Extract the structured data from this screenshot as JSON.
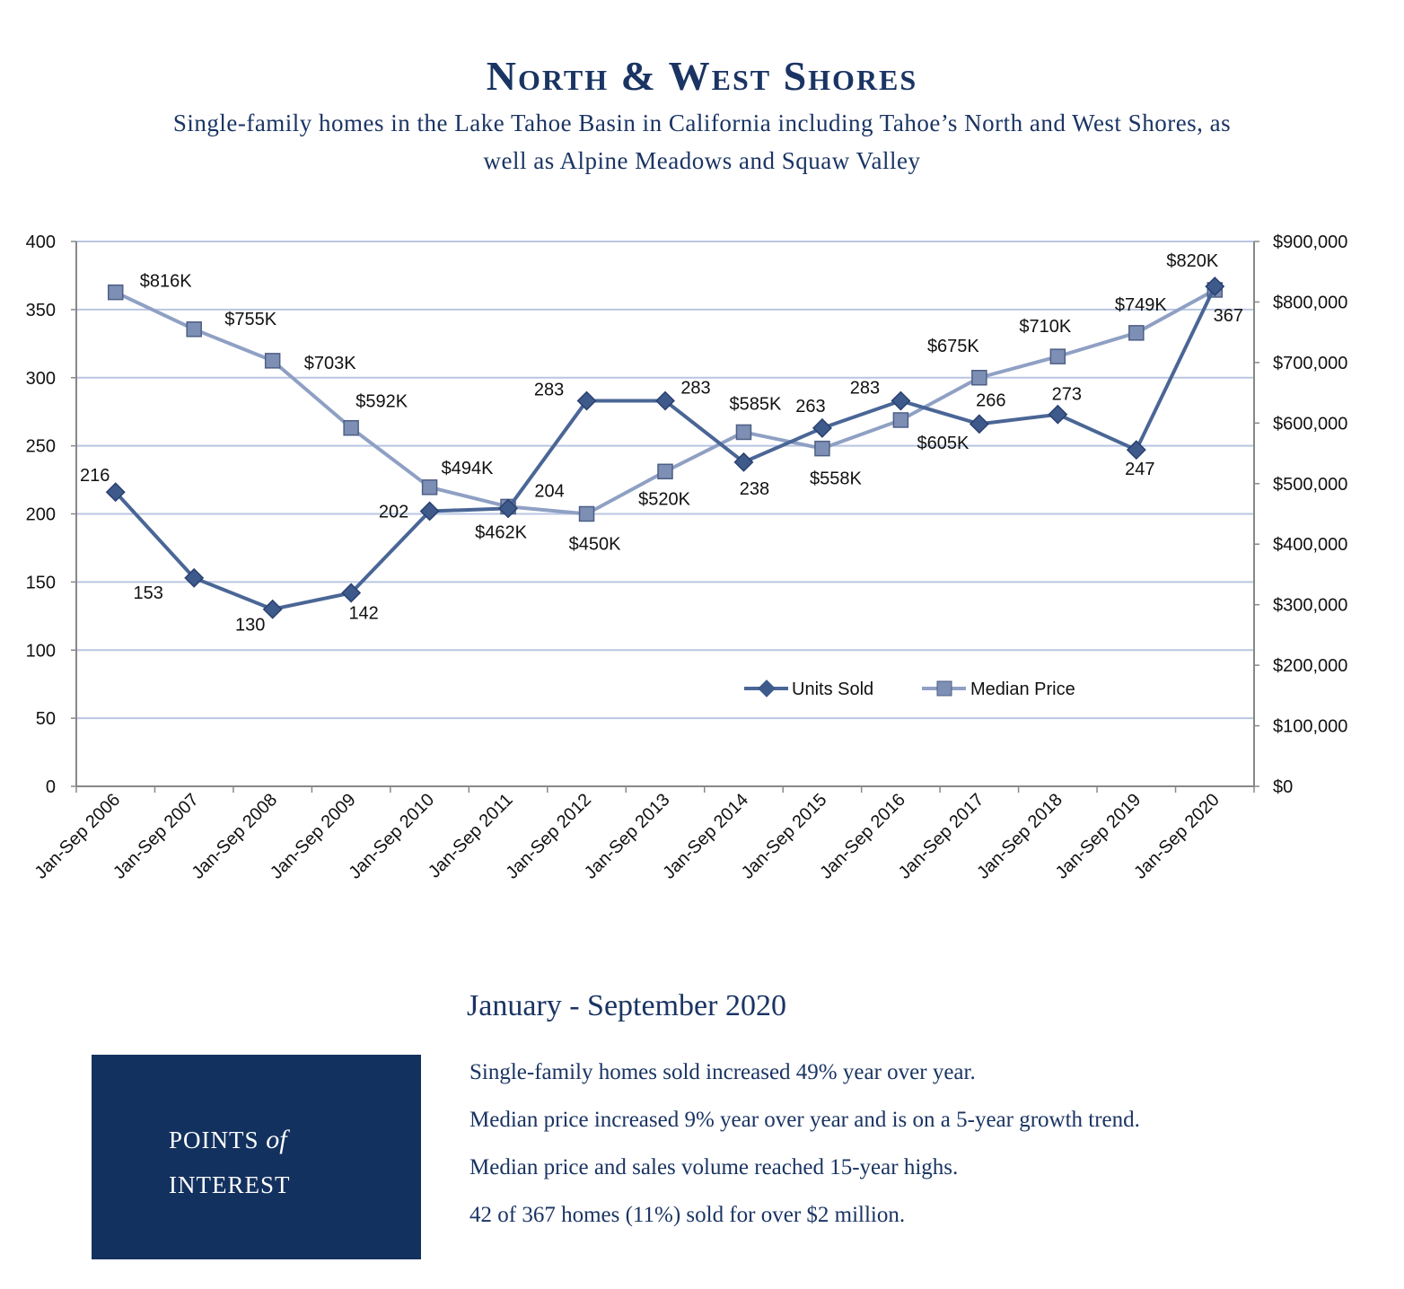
{
  "header": {
    "title": "North & West Shores",
    "subtitle": "Single-family homes in the Lake Tahoe Basin in California including Tahoe’s North and West Shores, as well as Alpine Meadows and Squaw Valley"
  },
  "chart_data": {
    "type": "line",
    "categories": [
      "Jan-Sep 2006",
      "Jan-Sep 2007",
      "Jan-Sep 2008",
      "Jan-Sep 2009",
      "Jan-Sep 2010",
      "Jan-Sep 2011",
      "Jan-Sep 2012",
      "Jan-Sep 2013",
      "Jan-Sep 2014",
      "Jan-Sep 2015",
      "Jan-Sep 2016",
      "Jan-Sep 2017",
      "Jan-Sep 2018",
      "Jan-Sep 2019",
      "Jan-Sep 2020"
    ],
    "series": [
      {
        "name": "Units Sold",
        "axis": "left",
        "color": "#4a6696",
        "marker": "diamond",
        "values": [
          216,
          153,
          130,
          142,
          202,
          204,
          283,
          283,
          238,
          263,
          283,
          266,
          273,
          247,
          367
        ],
        "labels": [
          "216",
          "153",
          "130",
          "142",
          "202",
          "204",
          "283",
          "283",
          "238",
          "263",
          "283",
          "266",
          "273",
          "247",
          "367"
        ]
      },
      {
        "name": "Median Price",
        "axis": "right",
        "color": "#8fa0c4",
        "marker": "square",
        "values": [
          816000,
          755000,
          703000,
          592000,
          494000,
          462000,
          450000,
          520000,
          585000,
          558000,
          605000,
          675000,
          710000,
          749000,
          820000
        ],
        "labels": [
          "$816K",
          "$755K",
          "$703K",
          "$592K",
          "$494K",
          "$462K",
          "$450K",
          "$520K",
          "$585K",
          "$558K",
          "$605K",
          "$675K",
          "$710K",
          "$749K",
          "$820K"
        ]
      }
    ],
    "y_left": {
      "range": [
        0,
        400
      ],
      "ticks": [
        "0",
        "50",
        "100",
        "150",
        "200",
        "250",
        "300",
        "350",
        "400"
      ]
    },
    "y_right": {
      "range": [
        0,
        900000
      ],
      "ticks": [
        "$0",
        "$100,000",
        "$200,000",
        "$300,000",
        "$400,000",
        "$500,000",
        "$600,000",
        "$700,000",
        "$800,000",
        "$900,000"
      ]
    },
    "grid": true,
    "legend": "inside-bottom-right"
  },
  "summary": {
    "period": "January - September 2020",
    "box_line1": "POINTS",
    "box_of": "of",
    "box_line2": "INTEREST",
    "points": [
      "Single-family homes sold increased 49% year over year.",
      "Median price increased 9% year over year and is on a 5-year growth trend.",
      "Median price and sales volume reached 15-year highs.",
      "42 of 367 homes (11%) sold for over $2 million."
    ]
  }
}
